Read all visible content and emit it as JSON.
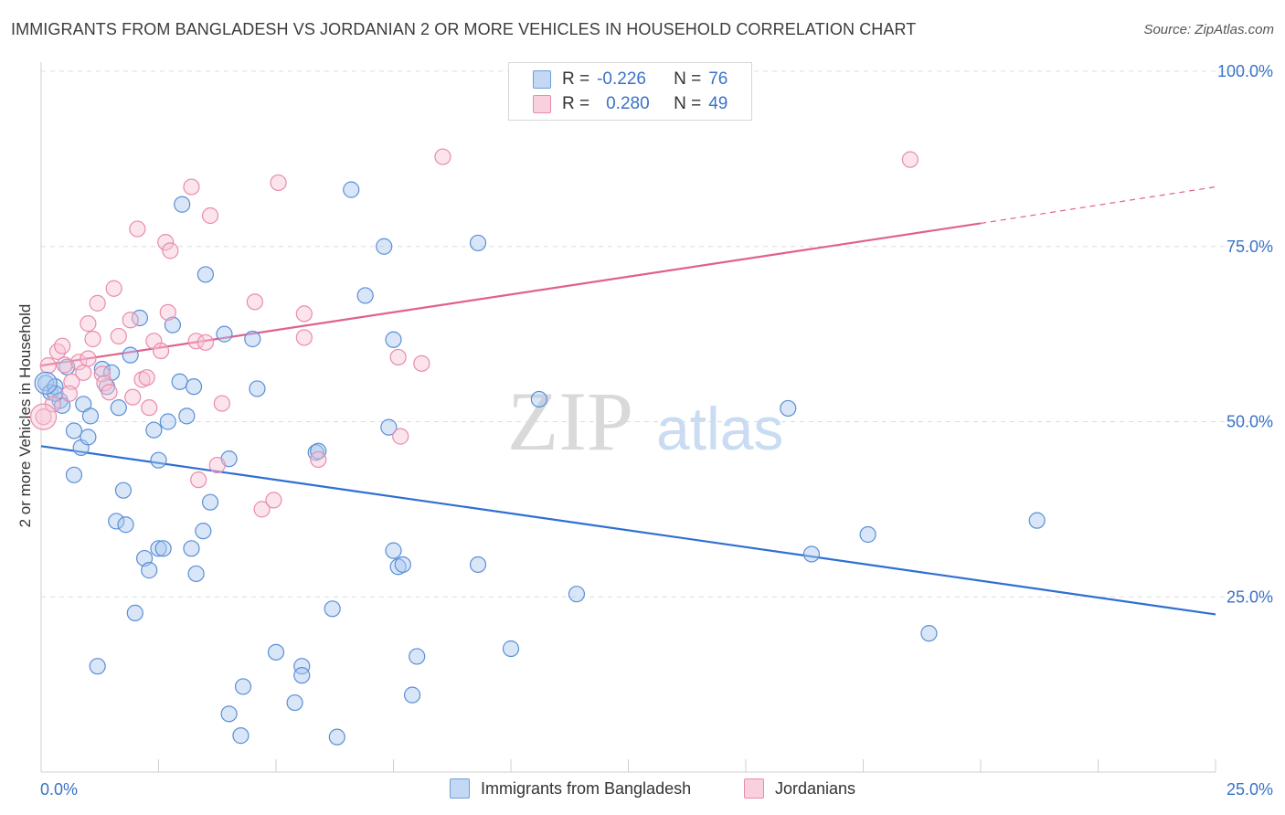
{
  "chart_data": {
    "type": "scatter",
    "title": "IMMIGRANTS FROM BANGLADESH VS JORDANIAN 2 OR MORE VEHICLES IN HOUSEHOLD CORRELATION CHART",
    "source": "Source: ZipAtlas.com",
    "xlabel": "",
    "ylabel": "2 or more Vehicles in Household",
    "xlim": [
      0,
      25
    ],
    "ylim": [
      0,
      100
    ],
    "x_tick_labels": [
      "0.0%",
      "25.0%"
    ],
    "y_ticks": [
      25,
      50,
      75,
      100
    ],
    "y_tick_labels": [
      "25.0%",
      "50.0%",
      "75.0%",
      "100.0%"
    ],
    "grid": true,
    "watermark": {
      "part1": "ZIP",
      "part2": "atlas"
    },
    "legend": {
      "position": "top-center",
      "rows": [
        {
          "r_label": "R =",
          "r_value": "-0.226",
          "n_label": "N =",
          "n_value": "76"
        },
        {
          "r_label": "R =",
          "r_value": "0.280",
          "n_label": "N =",
          "n_value": "49"
        }
      ]
    },
    "series": [
      {
        "name": "Immigrants from Bangladesh",
        "color": "#5b8fd6",
        "fill": "#a9c8f0",
        "trend": {
          "x": [
            0,
            25
          ],
          "y": [
            46.5,
            22.5
          ],
          "style": "solid",
          "color": "#2f6fd1"
        },
        "points": [
          [
            0.1,
            55.5
          ],
          [
            0.2,
            54.2
          ],
          [
            0.3,
            55.0
          ],
          [
            0.4,
            53.0
          ],
          [
            0.45,
            52.3
          ],
          [
            0.55,
            57.8
          ],
          [
            0.7,
            48.7
          ],
          [
            0.85,
            46.3
          ],
          [
            0.9,
            52.5
          ],
          [
            1.0,
            47.8
          ],
          [
            1.05,
            50.8
          ],
          [
            0.7,
            42.4
          ],
          [
            1.3,
            57.5
          ],
          [
            1.4,
            55.0
          ],
          [
            1.5,
            57.0
          ],
          [
            1.65,
            52.0
          ],
          [
            1.9,
            59.5
          ],
          [
            2.1,
            64.8
          ],
          [
            2.4,
            48.8
          ],
          [
            2.5,
            44.5
          ],
          [
            2.7,
            50.0
          ],
          [
            2.8,
            63.8
          ],
          [
            2.95,
            55.7
          ],
          [
            3.1,
            50.8
          ],
          [
            3.25,
            55.0
          ],
          [
            3.5,
            71.0
          ],
          [
            3.6,
            38.5
          ],
          [
            3.9,
            62.5
          ],
          [
            4.0,
            44.7
          ],
          [
            4.5,
            61.8
          ],
          [
            4.6,
            54.7
          ],
          [
            3.0,
            81.0
          ],
          [
            1.6,
            35.8
          ],
          [
            1.8,
            35.3
          ],
          [
            1.75,
            40.2
          ],
          [
            2.2,
            30.5
          ],
          [
            2.3,
            28.8
          ],
          [
            2.5,
            31.9
          ],
          [
            2.6,
            31.9
          ],
          [
            3.2,
            31.9
          ],
          [
            3.3,
            28.3
          ],
          [
            3.45,
            34.4
          ],
          [
            2.0,
            22.7
          ],
          [
            1.2,
            15.1
          ],
          [
            5.0,
            17.1
          ],
          [
            4.3,
            12.2
          ],
          [
            4.0,
            8.3
          ],
          [
            4.25,
            5.2
          ],
          [
            5.55,
            15.1
          ],
          [
            5.55,
            13.8
          ],
          [
            5.4,
            9.9
          ],
          [
            6.2,
            23.3
          ],
          [
            6.3,
            5.0
          ],
          [
            5.85,
            45.6
          ],
          [
            5.9,
            45.8
          ],
          [
            6.6,
            83.1
          ],
          [
            7.3,
            75.0
          ],
          [
            6.9,
            68.0
          ],
          [
            7.4,
            49.2
          ],
          [
            7.5,
            61.7
          ],
          [
            7.5,
            31.6
          ],
          [
            7.6,
            29.3
          ],
          [
            7.7,
            29.6
          ],
          [
            8.0,
            16.5
          ],
          [
            7.9,
            11.0
          ],
          [
            9.3,
            75.5
          ],
          [
            9.3,
            29.6
          ],
          [
            10.0,
            17.6
          ],
          [
            10.6,
            53.2
          ],
          [
            11.4,
            25.4
          ],
          [
            15.9,
            51.9
          ],
          [
            16.4,
            31.1
          ],
          [
            17.6,
            33.9
          ],
          [
            18.9,
            19.8
          ],
          [
            21.2,
            35.9
          ],
          [
            0.3,
            54.0
          ]
        ]
      },
      {
        "name": "Jordanians",
        "color": "#e98cab",
        "fill": "#f6c3d4",
        "trend": {
          "x": [
            0,
            20
          ],
          "y": [
            58.0,
            78.3
          ],
          "dash_x": [
            20,
            25
          ],
          "dash_y": [
            78.3,
            83.5
          ],
          "style": "solid-then-dashed",
          "color": "#e0608f"
        },
        "points": [
          [
            0.05,
            50.7
          ],
          [
            0.15,
            58.0
          ],
          [
            0.35,
            60.0
          ],
          [
            0.45,
            60.8
          ],
          [
            0.5,
            58.1
          ],
          [
            0.65,
            55.7
          ],
          [
            0.8,
            58.5
          ],
          [
            0.9,
            57.0
          ],
          [
            1.0,
            64.0
          ],
          [
            1.1,
            61.8
          ],
          [
            1.2,
            66.9
          ],
          [
            1.3,
            56.8
          ],
          [
            1.35,
            55.5
          ],
          [
            1.45,
            54.2
          ],
          [
            1.55,
            69.0
          ],
          [
            1.65,
            62.2
          ],
          [
            1.9,
            64.5
          ],
          [
            1.95,
            53.5
          ],
          [
            2.05,
            77.5
          ],
          [
            2.15,
            56.0
          ],
          [
            2.25,
            56.3
          ],
          [
            2.3,
            52.0
          ],
          [
            2.4,
            61.5
          ],
          [
            2.55,
            60.1
          ],
          [
            2.65,
            75.6
          ],
          [
            2.7,
            65.6
          ],
          [
            2.75,
            74.4
          ],
          [
            3.2,
            83.5
          ],
          [
            3.3,
            61.5
          ],
          [
            3.5,
            61.3
          ],
          [
            3.75,
            43.8
          ],
          [
            3.85,
            52.6
          ],
          [
            3.6,
            79.4
          ],
          [
            3.35,
            41.7
          ],
          [
            4.55,
            67.1
          ],
          [
            4.7,
            37.5
          ],
          [
            4.95,
            38.8
          ],
          [
            5.05,
            84.1
          ],
          [
            5.6,
            65.4
          ],
          [
            5.6,
            62.0
          ],
          [
            5.9,
            44.6
          ],
          [
            7.6,
            59.2
          ],
          [
            7.65,
            47.9
          ],
          [
            8.1,
            58.3
          ],
          [
            8.55,
            87.8
          ],
          [
            18.5,
            87.4
          ],
          [
            0.6,
            54.0
          ],
          [
            1.0,
            59.0
          ],
          [
            0.25,
            52.5
          ]
        ]
      }
    ]
  }
}
